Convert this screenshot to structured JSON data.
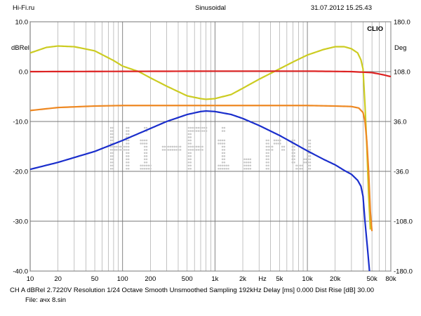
{
  "header": {
    "left": "Hi-Fi.ru",
    "center": "Sinusoidal",
    "right": "31.07.2012 15.25.43"
  },
  "brand": "CLIO",
  "watermark": "Hi-Fi.ru",
  "footer": {
    "line1": "CH A   dBRel 2.7220V   Resolution 1/24 Octave   Smooth Unsmoothed   Sampling 192kHz   Delay [ms] 0.000   Dist Rise [dB] 30.00",
    "line2": "File: ачх 8.sin"
  },
  "chart_data": {
    "type": "line",
    "xscale": "log",
    "xlim": [
      10,
      80000
    ],
    "ylim": [
      -40,
      10
    ],
    "y2lim": [
      -180,
      180
    ],
    "ylabel": "dBRel",
    "y2label": "Deg",
    "xlabel": "Hz",
    "grid": true,
    "x_ticks": [
      {
        "v": 10,
        "label": "10"
      },
      {
        "v": 20,
        "label": "20"
      },
      {
        "v": 50,
        "label": "50"
      },
      {
        "v": 100,
        "label": "100"
      },
      {
        "v": 200,
        "label": "200"
      },
      {
        "v": 500,
        "label": "500"
      },
      {
        "v": 1000,
        "label": "1k"
      },
      {
        "v": 2000,
        "label": "2k"
      },
      {
        "v": 5000,
        "label": "5k"
      },
      {
        "v": 10000,
        "label": "10k"
      },
      {
        "v": 20000,
        "label": "20k"
      },
      {
        "v": 50000,
        "label": "50k"
      },
      {
        "v": 80000,
        "label": "80k"
      }
    ],
    "y_ticks": [
      {
        "v": 10,
        "label": "10.0"
      },
      {
        "v": 0,
        "label": "0.0"
      },
      {
        "v": -10,
        "label": "-10.0"
      },
      {
        "v": -20,
        "label": "-20.0"
      },
      {
        "v": -30,
        "label": "-30.0"
      },
      {
        "v": -40,
        "label": "-40.0"
      }
    ],
    "y2_ticks": [
      {
        "v": 180,
        "label": "180.0"
      },
      {
        "v": 108,
        "label": "108.0"
      },
      {
        "v": 36,
        "label": "36.0"
      },
      {
        "v": -36,
        "label": "-36.0"
      },
      {
        "v": -108,
        "label": "-108.0"
      },
      {
        "v": -180,
        "label": "-180.0"
      }
    ],
    "series": [
      {
        "color": "#cccc22",
        "axis": "right",
        "points": [
          [
            10,
            135
          ],
          [
            15,
            143
          ],
          [
            20,
            145
          ],
          [
            30,
            144
          ],
          [
            50,
            138
          ],
          [
            80,
            124
          ],
          [
            100,
            116
          ],
          [
            150,
            108
          ],
          [
            200,
            99
          ],
          [
            300,
            87
          ],
          [
            500,
            73
          ],
          [
            700,
            69
          ],
          [
            800,
            68
          ],
          [
            1000,
            69
          ],
          [
            1500,
            75
          ],
          [
            2000,
            84
          ],
          [
            3000,
            97
          ],
          [
            5000,
            112
          ],
          [
            7000,
            122
          ],
          [
            10000,
            132
          ],
          [
            15000,
            140
          ],
          [
            20000,
            144
          ],
          [
            25000,
            144
          ],
          [
            30000,
            141
          ],
          [
            35000,
            135
          ],
          [
            38000,
            125
          ],
          [
            40000,
            112
          ],
          [
            42000,
            60
          ],
          [
            44000,
            0
          ],
          [
            46000,
            -70
          ],
          [
            48000,
            -120
          ]
        ]
      },
      {
        "color": "#dd2222",
        "axis": "left",
        "points": [
          [
            10,
            0
          ],
          [
            100,
            0.05
          ],
          [
            1000,
            0.1
          ],
          [
            10000,
            0.1
          ],
          [
            30000,
            0
          ],
          [
            50000,
            -0.2
          ],
          [
            65000,
            -0.6
          ],
          [
            80000,
            -1
          ]
        ]
      },
      {
        "color": "#ee8822",
        "axis": "left",
        "points": [
          [
            10,
            -7.8
          ],
          [
            20,
            -7.2
          ],
          [
            50,
            -6.9
          ],
          [
            100,
            -6.8
          ],
          [
            1000,
            -6.8
          ],
          [
            10000,
            -6.8
          ],
          [
            20000,
            -6.9
          ],
          [
            30000,
            -7.0
          ],
          [
            36000,
            -7.3
          ],
          [
            40000,
            -8.2
          ],
          [
            42000,
            -10
          ],
          [
            44000,
            -14
          ],
          [
            46000,
            -20
          ],
          [
            48000,
            -28
          ],
          [
            50000,
            -32
          ]
        ]
      },
      {
        "color": "#1a2ecc",
        "axis": "left",
        "points": [
          [
            10,
            -19.6
          ],
          [
            20,
            -18.2
          ],
          [
            50,
            -16.0
          ],
          [
            100,
            -13.8
          ],
          [
            200,
            -11.4
          ],
          [
            300,
            -10.0
          ],
          [
            500,
            -8.6
          ],
          [
            700,
            -8.0
          ],
          [
            800,
            -7.9
          ],
          [
            1000,
            -8.0
          ],
          [
            1500,
            -8.6
          ],
          [
            2000,
            -9.4
          ],
          [
            3000,
            -10.8
          ],
          [
            5000,
            -12.8
          ],
          [
            7000,
            -14.3
          ],
          [
            10000,
            -15.9
          ],
          [
            15000,
            -17.6
          ],
          [
            20000,
            -18.7
          ],
          [
            25000,
            -19.8
          ],
          [
            30000,
            -20.6
          ],
          [
            35000,
            -21.8
          ],
          [
            38000,
            -23
          ],
          [
            40000,
            -25
          ],
          [
            42000,
            -30
          ],
          [
            45000,
            -36
          ],
          [
            47000,
            -40
          ]
        ]
      }
    ]
  }
}
